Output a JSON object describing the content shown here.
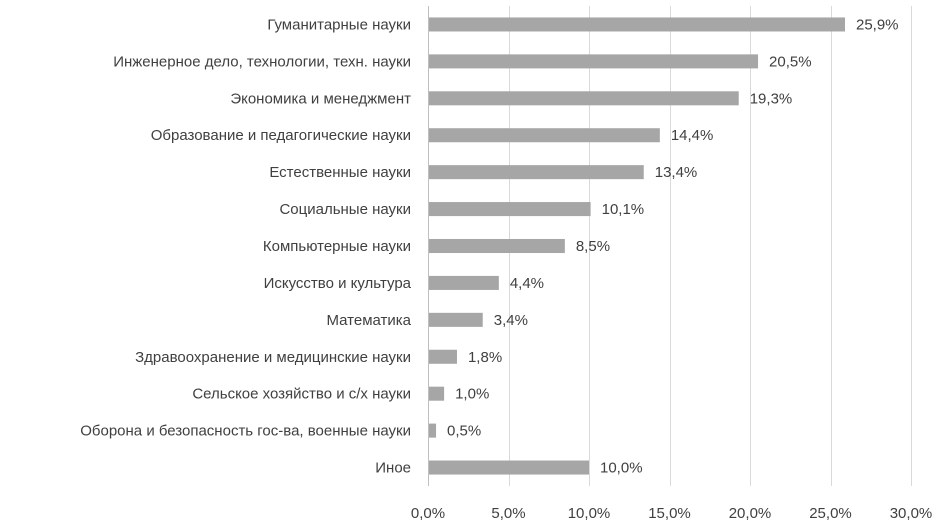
{
  "chart_data": {
    "type": "bar",
    "orientation": "horizontal",
    "title": "",
    "xlabel": "",
    "ylabel": "",
    "categories": [
      "Гуманитарные науки",
      "Инженерное дело, технологии, техн. науки",
      "Экономика и менеджмент",
      "Образование и педагогические науки",
      "Естественные науки",
      "Социальные науки",
      "Компьютерные науки",
      "Искусство и культура",
      "Математика",
      "Здравоохранение и медицинские науки",
      "Сельское хозяйство и с/х науки",
      "Оборона и безопасность гос-ва, военные науки",
      "Иное"
    ],
    "values": [
      25.9,
      20.5,
      19.3,
      14.4,
      13.4,
      10.1,
      8.5,
      4.4,
      3.4,
      1.8,
      1.0,
      0.5,
      10.0
    ],
    "value_labels": [
      "25,9%",
      "20,5%",
      "19,3%",
      "14,4%",
      "13,4%",
      "10,1%",
      "8,5%",
      "4,4%",
      "3,4%",
      "1,8%",
      "1,0%",
      "0,5%",
      "10,0%"
    ],
    "xlim": [
      0,
      30
    ],
    "xticks": [
      0,
      5,
      10,
      15,
      20,
      25,
      30
    ],
    "xtick_labels": [
      "0,0%",
      "5,0%",
      "10,0%",
      "15,0%",
      "20,0%",
      "25,0%",
      "30,0%"
    ],
    "grid": true,
    "legend": "none",
    "bar_color": "#a6a6a6"
  }
}
